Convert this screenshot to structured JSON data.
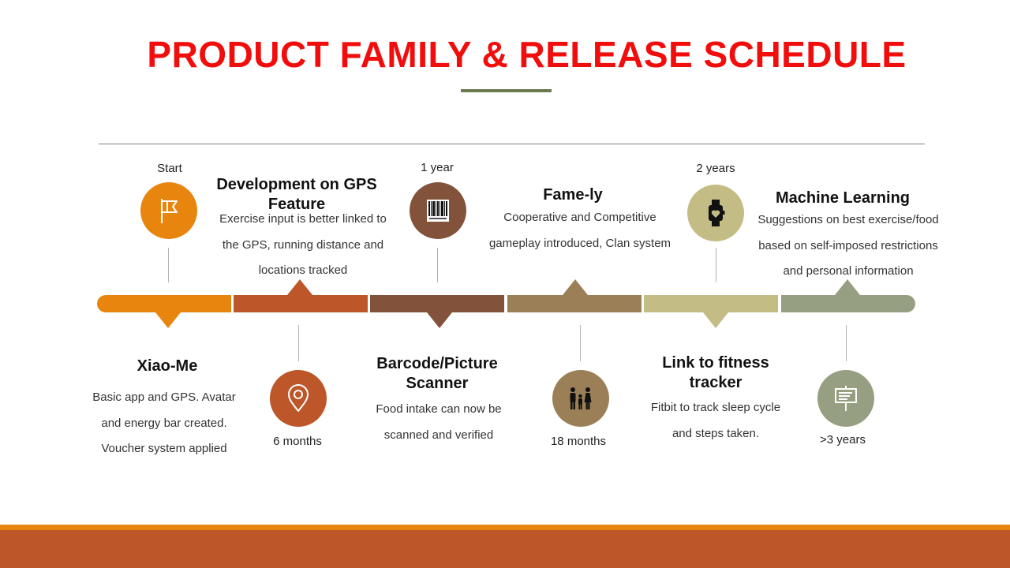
{
  "title": "PRODUCT FAMILY & RELEASE SCHEDULE",
  "colors": {
    "title": "#f20d0d",
    "orange": "#e8850f",
    "rust": "#bd5629",
    "brown": "#83523b",
    "tan": "#9b7f56",
    "khaki": "#c3bd85",
    "sage": "#979f82"
  },
  "milestones": [
    {
      "time": "Start",
      "icon": "flag-icon",
      "heading": "Xiao-Me",
      "description": "Basic app and GPS. Avatar and energy bar created. Voucher system applied"
    },
    {
      "time": "6 months",
      "icon": "location-pin-icon",
      "heading": "Development  on GPS Feature",
      "description": "Exercise input is better linked to the GPS, running distance and locations tracked"
    },
    {
      "time": "1 year",
      "icon": "barcode-icon",
      "heading": "Barcode/Picture Scanner",
      "description": "Food intake can now be scanned and verified"
    },
    {
      "time": "18 months",
      "icon": "family-icon",
      "heading": "Fame-ly",
      "description": "Cooperative and Competitive gameplay introduced,  Clan system"
    },
    {
      "time": "2 years",
      "icon": "smartwatch-icon",
      "heading": "Link to fitness tracker",
      "description": "Fitbit to track sleep cycle and steps taken."
    },
    {
      "time": ">3 years",
      "icon": "presentation-board-icon",
      "heading": "Machine Learning",
      "description": "Suggestions on best exercise/food based on self-imposed restrictions and personal information"
    }
  ]
}
